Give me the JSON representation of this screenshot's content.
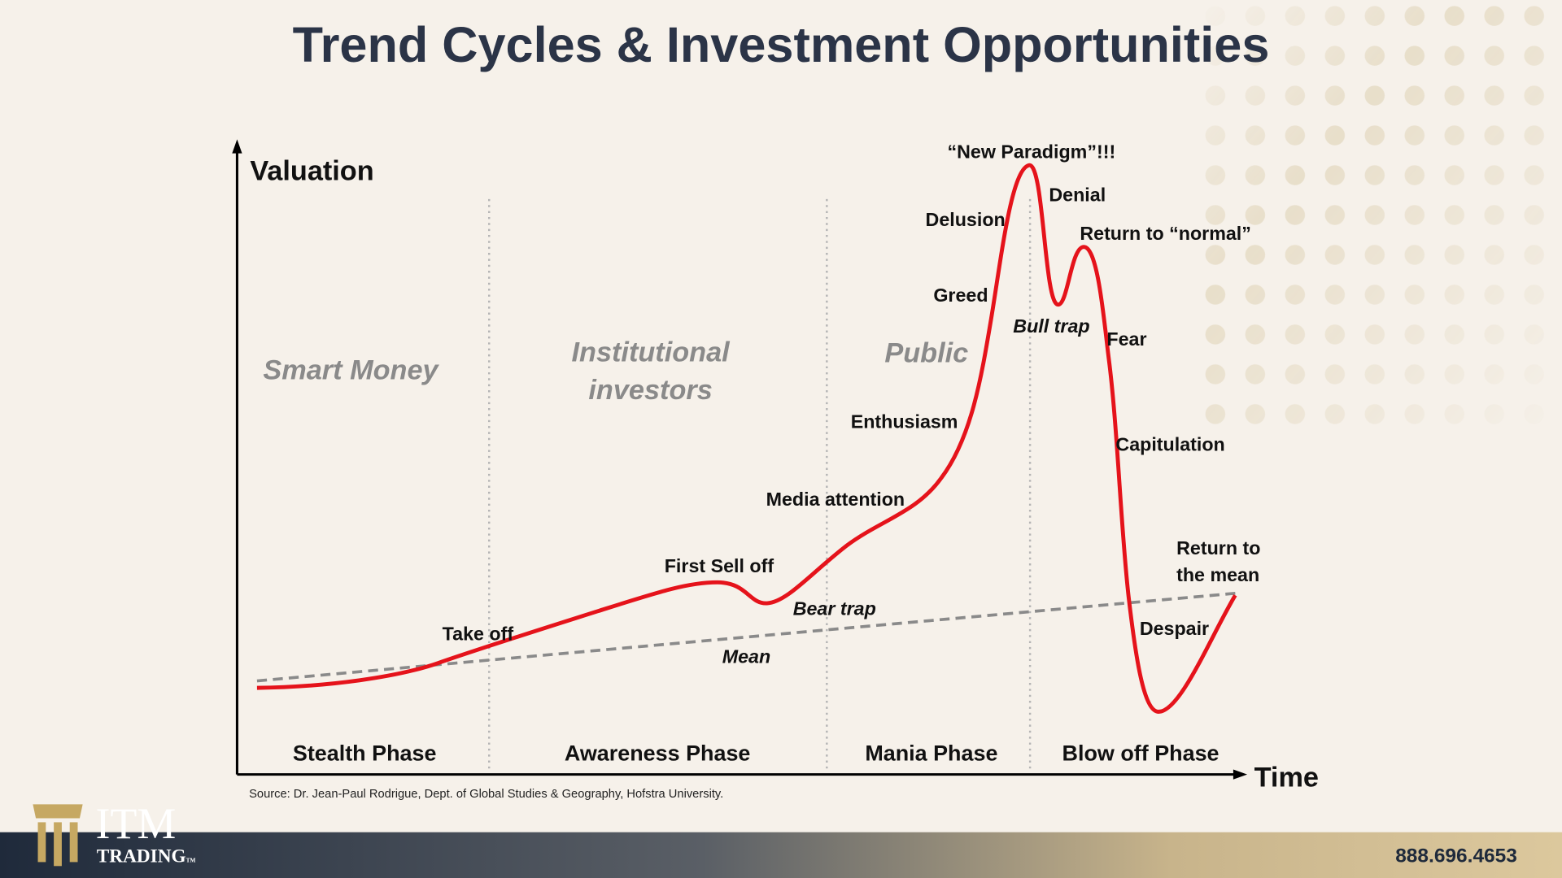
{
  "header": {
    "title": "Trend Cycles & Investment Opportunities"
  },
  "diagram": {
    "y_axis_label": "Valuation",
    "x_axis_label": "Time",
    "groups": [
      {
        "lines": [
          "Smart Money"
        ]
      },
      {
        "lines": [
          "Institutional",
          "investors"
        ]
      },
      {
        "lines": [
          "Public"
        ]
      }
    ],
    "phases": [
      "Stealth Phase",
      "Awareness Phase",
      "Mania Phase",
      "Blow off Phase"
    ],
    "annotations": [
      "“New Paradigm”!!!",
      "Denial",
      "Delusion",
      "Return to “normal”",
      "Greed",
      "Bull trap",
      "Fear",
      "Enthusiasm",
      "Capitulation",
      "Media attention",
      "First Sell off",
      "Bear trap",
      "Take off",
      "Mean",
      "Despair"
    ],
    "return_to_mean": {
      "lines": [
        "Return to",
        "the mean"
      ]
    },
    "source": "Source: Dr. Jean-Paul Rodrigue, Dept. of Global Studies & Geography, Hofstra University."
  },
  "footer": {
    "logo_text": "ITM",
    "logo_subtext": "TRADING",
    "trademark": "TM",
    "phone": "888.696.4653"
  }
}
